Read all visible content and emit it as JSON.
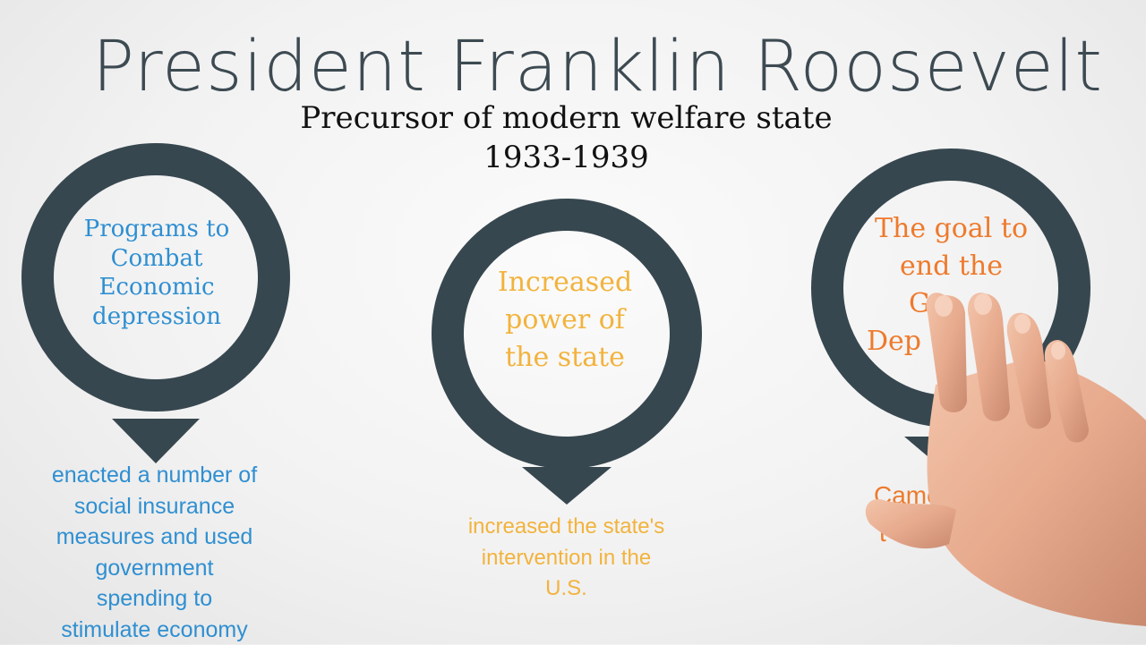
{
  "title": "President Franklin Roosevelt",
  "subtitle": "Precursor of modern welfare state",
  "years": "1933-1939",
  "colors": {
    "ring": "#37474f",
    "blue": "#2f8fd1",
    "yellow": "#f2b33d",
    "orange": "#ee7a2c"
  },
  "circles": [
    {
      "heading": [
        "Programs to",
        "Combat",
        "Economic",
        "depression"
      ],
      "description": [
        "enacted a number of",
        "social insurance",
        "measures and used",
        "government",
        "spending to",
        "stimulate economy"
      ]
    },
    {
      "heading": [
        "Increased",
        "power of",
        "the state"
      ],
      "description": [
        "increased the state's",
        "intervention in the",
        "U.S."
      ]
    },
    {
      "heading": [
        "The goal to",
        "end the",
        "Gr",
        "Dep"
      ],
      "description": [
        "Came",
        "t  st"
      ]
    }
  ]
}
